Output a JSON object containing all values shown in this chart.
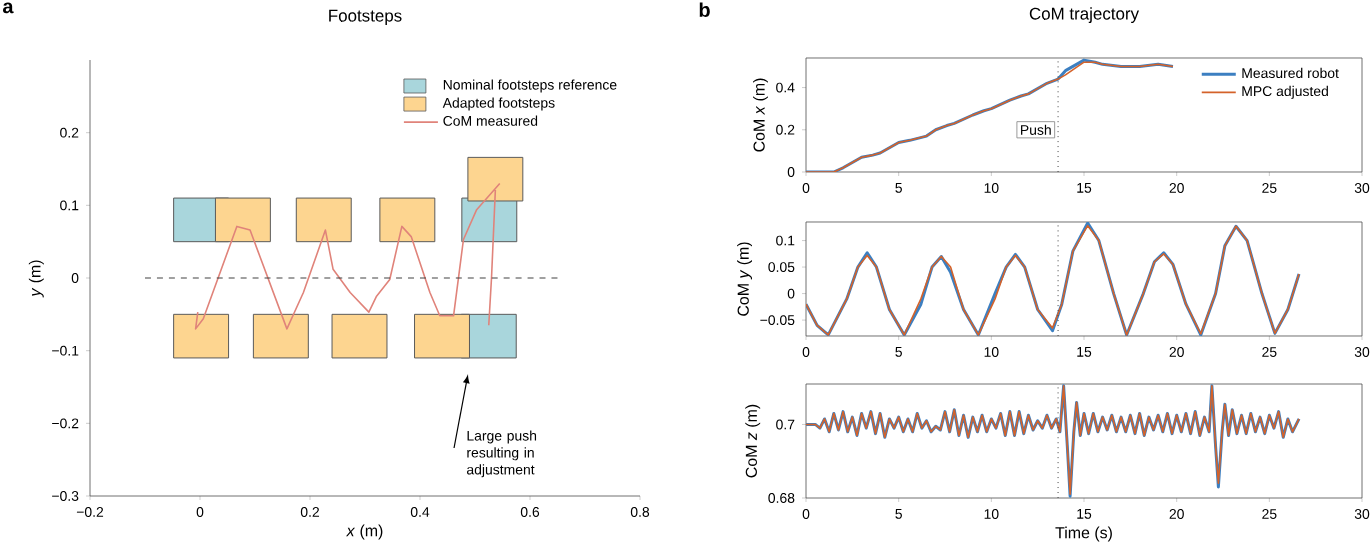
{
  "chart_data": [
    {
      "type": "scatter",
      "title": "Footsteps",
      "xlabel": "*x* (m)",
      "ylabel": "*y* (m)",
      "xlim": [
        -0.2,
        0.8
      ],
      "ylim": [
        -0.3,
        0.3
      ],
      "xticks": [
        {
          "value": -0.2,
          "label": "−0.2"
        },
        0,
        0.2,
        0.4,
        0.6,
        0.8
      ],
      "yticks": [
        {
          "value": -0.3,
          "label": "−0.3"
        },
        {
          "value": -0.2,
          "label": "−0.2"
        },
        {
          "value": -0.1,
          "label": "−0.1"
        },
        0,
        0.1,
        0.2
      ],
      "legend": "top right",
      "series": [
        {
          "name": "Nominal footsteps reference",
          "marker": "square",
          "color": "#a9d6dc",
          "x": [
            0.002,
            0.526,
            0.525
          ],
          "values": [
            0.08,
            0.08,
            -0.08
          ]
        },
        {
          "name": "Adapted footsteps",
          "marker": "square",
          "color": "#fdd590",
          "x": [
            0.078,
            0.225,
            0.377,
            0.537,
            0.002,
            0.147,
            0.29,
            0.44
          ],
          "values": [
            0.08,
            0.08,
            0.08,
            0.136,
            -0.08,
            -0.08,
            -0.08,
            -0.08
          ]
        },
        {
          "name": "CoM measured",
          "type": "line",
          "color": "#e0837a",
          "x": [
            -0.004,
            -0.008,
            0.006,
            0.067,
            0.091,
            0.158,
            0.188,
            0.228,
            0.242,
            0.273,
            0.307,
            0.321,
            0.345,
            0.367,
            0.384,
            0.418,
            0.436,
            0.461,
            0.479,
            0.503,
            0.545,
            null,
            0.525,
            0.53,
            0.537
          ],
          "values": [
            -0.047,
            -0.07,
            -0.056,
            0.071,
            0.066,
            -0.07,
            -0.02,
            0.066,
            0.012,
            -0.02,
            -0.047,
            -0.025,
            -0.002,
            0.071,
            0.057,
            -0.02,
            -0.052,
            -0.052,
            0.053,
            0.094,
            0.13,
            null,
            -0.065,
            0.0,
            0.121
          ]
        }
      ],
      "ref_lines": [
        {
          "axis": "y",
          "value": 0,
          "line_style": "dashed"
        }
      ],
      "annotations": [
        "a",
        "Large push resulting in adjustment"
      ]
    },
    {
      "type": "line",
      "title": "CoM trajectory",
      "ylabel": "CoM *x* (m)",
      "xlim": [
        0,
        30
      ],
      "ylim": [
        0,
        0.54
      ],
      "xticks": [
        0,
        5,
        10,
        15,
        20,
        25,
        30
      ],
      "yticks": [
        0,
        0.2,
        0.4
      ],
      "legend": "top right",
      "x": [
        0,
        1.5,
        2,
        3,
        3.6,
        4,
        5,
        5.6,
        6.5,
        7,
        7.6,
        8,
        9,
        9.6,
        10,
        11,
        11.6,
        12,
        13,
        13.6,
        14,
        15,
        15.6,
        16,
        17,
        18,
        19,
        19.8
      ],
      "series": [
        {
          "name": "Measured robot",
          "color": "#3c7fc1",
          "values": [
            0,
            0,
            0.02,
            0.07,
            0.08,
            0.09,
            0.14,
            0.15,
            0.17,
            0.2,
            0.22,
            0.23,
            0.27,
            0.29,
            0.3,
            0.34,
            0.36,
            0.37,
            0.42,
            0.44,
            0.48,
            0.53,
            0.52,
            0.51,
            0.5,
            0.5,
            0.51,
            0.5
          ]
        },
        {
          "name": "MPC adjusted",
          "color": "#d4622a",
          "values": [
            0,
            0,
            0.02,
            0.07,
            0.08,
            0.09,
            0.14,
            0.15,
            0.17,
            0.2,
            0.22,
            0.23,
            0.27,
            0.29,
            0.3,
            0.34,
            0.36,
            0.37,
            0.42,
            0.44,
            0.46,
            0.52,
            0.52,
            0.51,
            0.5,
            0.5,
            0.51,
            0.5
          ]
        }
      ],
      "ref_lines": [
        {
          "axis": "x",
          "value": 13.6,
          "line_style": "dotted"
        }
      ],
      "annotations": [
        "b",
        {
          "text": "Push",
          "x": 13.6,
          "y": 0.2
        }
      ]
    },
    {
      "type": "line",
      "ylabel": "CoM *y* (m)",
      "xlim": [
        0,
        30
      ],
      "ylim": [
        -0.08,
        0.135
      ],
      "xticks": [
        0,
        5,
        10,
        15,
        20,
        25,
        30
      ],
      "yticks": [
        {
          "value": -0.05,
          "label": "−0.05"
        },
        0,
        0.05,
        0.1
      ],
      "x": [
        0,
        0.6,
        1.2,
        2.2,
        2.8,
        3.3,
        3.8,
        4.5,
        5.3,
        6.2,
        6.8,
        7.3,
        7.8,
        8.5,
        9.3,
        10.2,
        10.8,
        11.3,
        11.8,
        12.5,
        13.3,
        13.8,
        14.4,
        15.2,
        15.8,
        16.6,
        17.3,
        18.2,
        18.8,
        19.3,
        19.8,
        20.5,
        21.3,
        22.1,
        22.6,
        23.2,
        23.8,
        24.6,
        25.3,
        26,
        26.6
      ],
      "series": [
        {
          "color": "#3c7fc1",
          "values": [
            -0.02,
            -0.06,
            -0.078,
            -0.01,
            0.05,
            0.077,
            0.05,
            -0.03,
            -0.078,
            -0.02,
            0.05,
            0.07,
            0.04,
            -0.03,
            -0.078,
            0.0,
            0.05,
            0.074,
            0.05,
            -0.03,
            -0.07,
            -0.02,
            0.08,
            0.133,
            0.1,
            0,
            -0.078,
            0,
            0.06,
            0.077,
            0.055,
            -0.02,
            -0.078,
            0,
            0.09,
            0.127,
            0.1,
            0,
            -0.075,
            -0.03,
            0.037
          ]
        },
        {
          "color": "#d4622a",
          "values": [
            -0.02,
            -0.06,
            -0.078,
            -0.01,
            0.05,
            0.072,
            0.05,
            -0.03,
            -0.078,
            -0.01,
            0.05,
            0.07,
            0.05,
            -0.03,
            -0.078,
            -0.01,
            0.05,
            0.072,
            0.05,
            -0.03,
            -0.065,
            -0.02,
            0.08,
            0.128,
            0.1,
            0,
            -0.078,
            0,
            0.06,
            0.075,
            0.055,
            -0.02,
            -0.076,
            0,
            0.09,
            0.127,
            0.1,
            0,
            -0.075,
            -0.03,
            0.037
          ]
        }
      ],
      "ref_lines": [
        {
          "axis": "x",
          "value": 13.6,
          "line_style": "dotted"
        }
      ]
    },
    {
      "type": "line",
      "xlabel": "Time (s)",
      "ylabel": "CoM *z* (m)",
      "xlim": [
        0,
        30
      ],
      "ylim": [
        0.68,
        0.711
      ],
      "xticks": [
        0,
        5,
        10,
        15,
        20,
        25,
        30
      ],
      "yticks": [
        0.68,
        0.7
      ],
      "x": [
        0,
        0.25,
        0.5,
        0.75,
        1,
        1.25,
        1.5,
        1.75,
        2,
        2.25,
        2.5,
        2.75,
        3,
        3.25,
        3.5,
        3.75,
        4,
        4.25,
        4.5,
        4.75,
        5,
        5.25,
        5.5,
        5.75,
        6,
        6.25,
        6.5,
        6.75,
        7,
        7.25,
        7.5,
        7.75,
        8,
        8.25,
        8.5,
        8.75,
        9,
        9.25,
        9.5,
        9.75,
        10,
        10.25,
        10.5,
        10.75,
        11,
        11.25,
        11.5,
        11.75,
        12,
        12.25,
        12.5,
        12.75,
        13,
        13.25,
        13.5,
        13.7,
        13.9,
        14.1,
        14.25,
        14.45,
        14.6,
        14.8,
        15,
        15.25,
        15.5,
        15.75,
        16,
        16.25,
        16.5,
        16.75,
        17,
        17.25,
        17.5,
        17.75,
        18,
        18.25,
        18.5,
        18.75,
        19,
        19.25,
        19.5,
        19.75,
        20,
        20.25,
        20.5,
        20.75,
        21,
        21.25,
        21.5,
        21.75,
        21.9,
        22.1,
        22.25,
        22.45,
        22.6,
        22.8,
        23,
        23.25,
        23.5,
        23.75,
        24,
        24.25,
        24.5,
        24.75,
        25,
        25.25,
        25.5,
        25.75,
        26,
        26.25,
        26.6
      ],
      "series": [
        {
          "color": "#3c7fc1",
          "values": [
            0.7,
            0.7,
            0.7,
            0.699,
            0.7015,
            0.698,
            0.703,
            0.6985,
            0.7035,
            0.698,
            0.702,
            0.697,
            0.703,
            0.699,
            0.7035,
            0.6975,
            0.703,
            0.6965,
            0.7015,
            0.699,
            0.702,
            0.698,
            0.7015,
            0.698,
            0.703,
            0.699,
            0.701,
            0.698,
            0.6995,
            0.6985,
            0.7035,
            0.698,
            0.704,
            0.697,
            0.7025,
            0.6965,
            0.702,
            0.698,
            0.7025,
            0.698,
            0.7015,
            0.699,
            0.703,
            0.697,
            0.7035,
            0.697,
            0.7035,
            0.6975,
            0.7025,
            0.6985,
            0.701,
            0.699,
            0.7025,
            0.699,
            0.7015,
            0.698,
            0.7105,
            0.694,
            0.6805,
            0.698,
            0.706,
            0.697,
            0.703,
            0.6975,
            0.703,
            0.698,
            0.702,
            0.6985,
            0.7025,
            0.698,
            0.702,
            0.698,
            0.7025,
            0.6975,
            0.703,
            0.697,
            0.702,
            0.6985,
            0.7025,
            0.698,
            0.703,
            0.6975,
            0.7025,
            0.698,
            0.703,
            0.6975,
            0.7035,
            0.697,
            0.702,
            0.698,
            0.7105,
            0.694,
            0.683,
            0.698,
            0.7055,
            0.697,
            0.704,
            0.6975,
            0.7025,
            0.6975,
            0.703,
            0.698,
            0.702,
            0.6975,
            0.7025,
            0.699,
            0.7035,
            0.6965,
            0.7015,
            0.698,
            0.7015
          ]
        },
        {
          "color": "#d4622a",
          "values": [
            0.7,
            0.7,
            0.7,
            0.699,
            0.7015,
            0.698,
            0.703,
            0.6985,
            0.7035,
            0.698,
            0.702,
            0.697,
            0.703,
            0.699,
            0.7035,
            0.6975,
            0.703,
            0.6965,
            0.7015,
            0.699,
            0.702,
            0.698,
            0.7015,
            0.698,
            0.703,
            0.699,
            0.701,
            0.698,
            0.6995,
            0.6985,
            0.7035,
            0.698,
            0.704,
            0.697,
            0.7025,
            0.6965,
            0.702,
            0.698,
            0.7025,
            0.698,
            0.7015,
            0.699,
            0.703,
            0.697,
            0.7035,
            0.697,
            0.7035,
            0.6975,
            0.7025,
            0.6985,
            0.701,
            0.699,
            0.7025,
            0.699,
            0.7015,
            0.698,
            0.7105,
            0.694,
            0.681,
            0.698,
            0.706,
            0.697,
            0.703,
            0.6975,
            0.703,
            0.698,
            0.702,
            0.6985,
            0.7025,
            0.698,
            0.702,
            0.698,
            0.7025,
            0.6975,
            0.703,
            0.697,
            0.702,
            0.6985,
            0.7025,
            0.698,
            0.703,
            0.6975,
            0.7025,
            0.698,
            0.703,
            0.6975,
            0.7035,
            0.697,
            0.702,
            0.698,
            0.7105,
            0.694,
            0.684,
            0.698,
            0.7055,
            0.697,
            0.704,
            0.6975,
            0.7025,
            0.6975,
            0.703,
            0.698,
            0.702,
            0.6975,
            0.7025,
            0.699,
            0.7035,
            0.6965,
            0.7015,
            0.698,
            0.7015
          ]
        }
      ],
      "ref_lines": [
        {
          "axis": "x",
          "value": 13.6,
          "line_style": "dotted"
        }
      ]
    }
  ]
}
